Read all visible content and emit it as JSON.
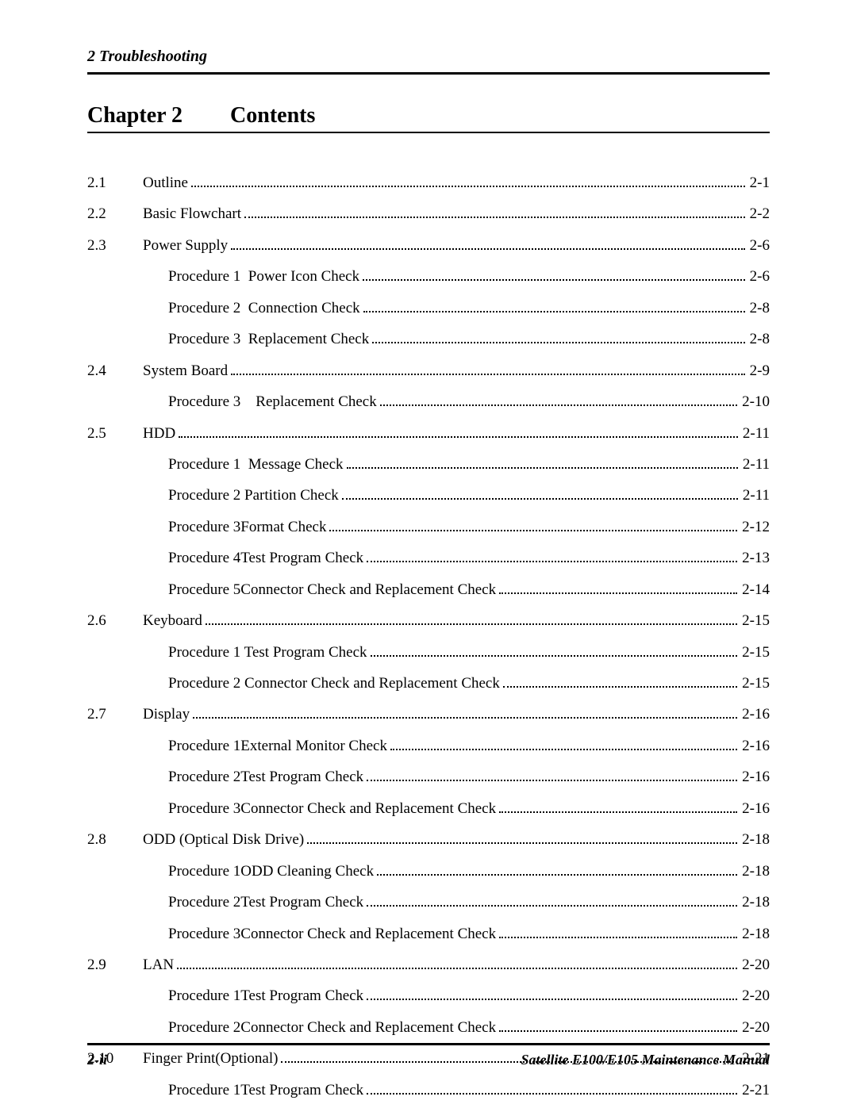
{
  "header": {
    "running_head": "2  Troubleshooting",
    "chapter_label": "Chapter 2",
    "contents_label": "Contents"
  },
  "toc": [
    {
      "num": "2.1",
      "title": "Outline",
      "page": "2-1",
      "indent": 0
    },
    {
      "num": "2.2",
      "title": "Basic Flowchart",
      "page": "2-2",
      "indent": 0
    },
    {
      "num": "2.3",
      "title": "Power Supply",
      "page": "2-6",
      "indent": 0
    },
    {
      "num": "",
      "title": "Procedure 1  Power Icon Check",
      "page": "2-6",
      "indent": 1
    },
    {
      "num": "",
      "title": "Procedure 2  Connection Check",
      "page": "2-8",
      "indent": 1
    },
    {
      "num": "",
      "title": "Procedure 3  Replacement Check",
      "page": "2-8",
      "indent": 1
    },
    {
      "num": "2.4",
      "title": "System Board",
      "page": "2-9",
      "indent": 0
    },
    {
      "num": "",
      "title": "Procedure 3    Replacement Check",
      "page": "2-10",
      "indent": 1
    },
    {
      "num": "2.5",
      "title": "HDD",
      "page": "2-11",
      "indent": 0
    },
    {
      "num": "",
      "title": "Procedure 1  Message Check",
      "page": "2-11",
      "indent": 1
    },
    {
      "num": "",
      "title": "Procedure 2 Partition Check",
      "page": "2-11",
      "indent": 1
    },
    {
      "num": "",
      "title": "Procedure 3Format Check",
      "page": "2-12",
      "indent": 1
    },
    {
      "num": "",
      "title": "Procedure 4Test Program Check",
      "page": "2-13",
      "indent": 1
    },
    {
      "num": "",
      "title": "Procedure 5Connector Check and Replacement Check",
      "page": "2-14",
      "indent": 1
    },
    {
      "num": "2.6",
      "title": "Keyboard",
      "page": "2-15",
      "indent": 0
    },
    {
      "num": "",
      "title": "Procedure 1 Test Program Check",
      "page": "2-15",
      "indent": 1
    },
    {
      "num": "",
      "title": "Procedure 2 Connector Check and Replacement Check",
      "page": "2-15",
      "indent": 1
    },
    {
      "num": "2.7",
      "title": "Display",
      "page": "2-16",
      "indent": 0
    },
    {
      "num": "",
      "title": "Procedure 1External Monitor Check",
      "page": "2-16",
      "indent": 1
    },
    {
      "num": "",
      "title": "Procedure 2Test Program Check",
      "page": "2-16",
      "indent": 1
    },
    {
      "num": "",
      "title": "Procedure 3Connector Check and Replacement Check",
      "page": "2-16",
      "indent": 1
    },
    {
      "num": "2.8",
      "title": "ODD (Optical Disk Drive)",
      "page": "2-18",
      "indent": 0
    },
    {
      "num": "",
      "title": "Procedure 1ODD Cleaning Check",
      "page": "2-18",
      "indent": 1
    },
    {
      "num": "",
      "title": "Procedure 2Test Program Check",
      "page": "2-18",
      "indent": 1
    },
    {
      "num": "",
      "title": "Procedure 3Connector Check and Replacement Check",
      "page": "2-18",
      "indent": 1
    },
    {
      "num": "2.9",
      "title": "LAN",
      "page": "2-20",
      "indent": 0
    },
    {
      "num": "",
      "title": "Procedure 1Test Program Check",
      "page": "2-20",
      "indent": 1
    },
    {
      "num": "",
      "title": "Procedure 2Connector Check and Replacement Check",
      "page": "2-20",
      "indent": 1
    },
    {
      "num": "2.10",
      "title": "Finger Print(Optional)",
      "page": "2-21",
      "indent": 0
    },
    {
      "num": "",
      "title": "Procedure 1Test Program Check",
      "page": "2-21",
      "indent": 1
    }
  ],
  "footer": {
    "page_number": "2-ii",
    "manual_title": "Satellite E100/E105   Maintenance Manual"
  }
}
